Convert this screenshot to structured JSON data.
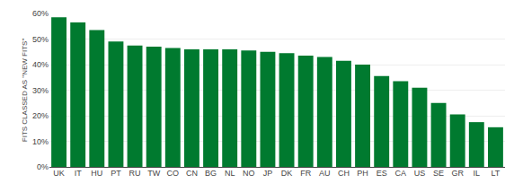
{
  "chart_data": {
    "type": "bar",
    "ylabel": "FITS CLASSED AS \"NEW FITS\"",
    "categories": [
      "UK",
      "IT",
      "HU",
      "PT",
      "RU",
      "TW",
      "CO",
      "CN",
      "BG",
      "NL",
      "NO",
      "JP",
      "DK",
      "FR",
      "AU",
      "CH",
      "PH",
      "ES",
      "CA",
      "US",
      "SE",
      "GR",
      "IL",
      "LT"
    ],
    "values": [
      58.5,
      56.5,
      53.5,
      49.0,
      47.5,
      47.0,
      46.5,
      46.0,
      46.0,
      46.0,
      45.5,
      45.0,
      44.5,
      43.5,
      43.0,
      41.5,
      40.0,
      35.5,
      33.5,
      31.0,
      25.0,
      20.5,
      17.5,
      15.5
    ],
    "color": "#007a2f",
    "ylim": [
      0,
      60
    ],
    "yticks": [
      {
        "value": 0,
        "label": "0%"
      },
      {
        "value": 10,
        "label": "10%"
      },
      {
        "value": 20,
        "label": "20%"
      },
      {
        "value": 30,
        "label": "30%"
      },
      {
        "value": 40,
        "label": "40%"
      },
      {
        "value": 50,
        "label": "50%"
      },
      {
        "value": 60,
        "label": "60%"
      }
    ],
    "grid": true
  }
}
